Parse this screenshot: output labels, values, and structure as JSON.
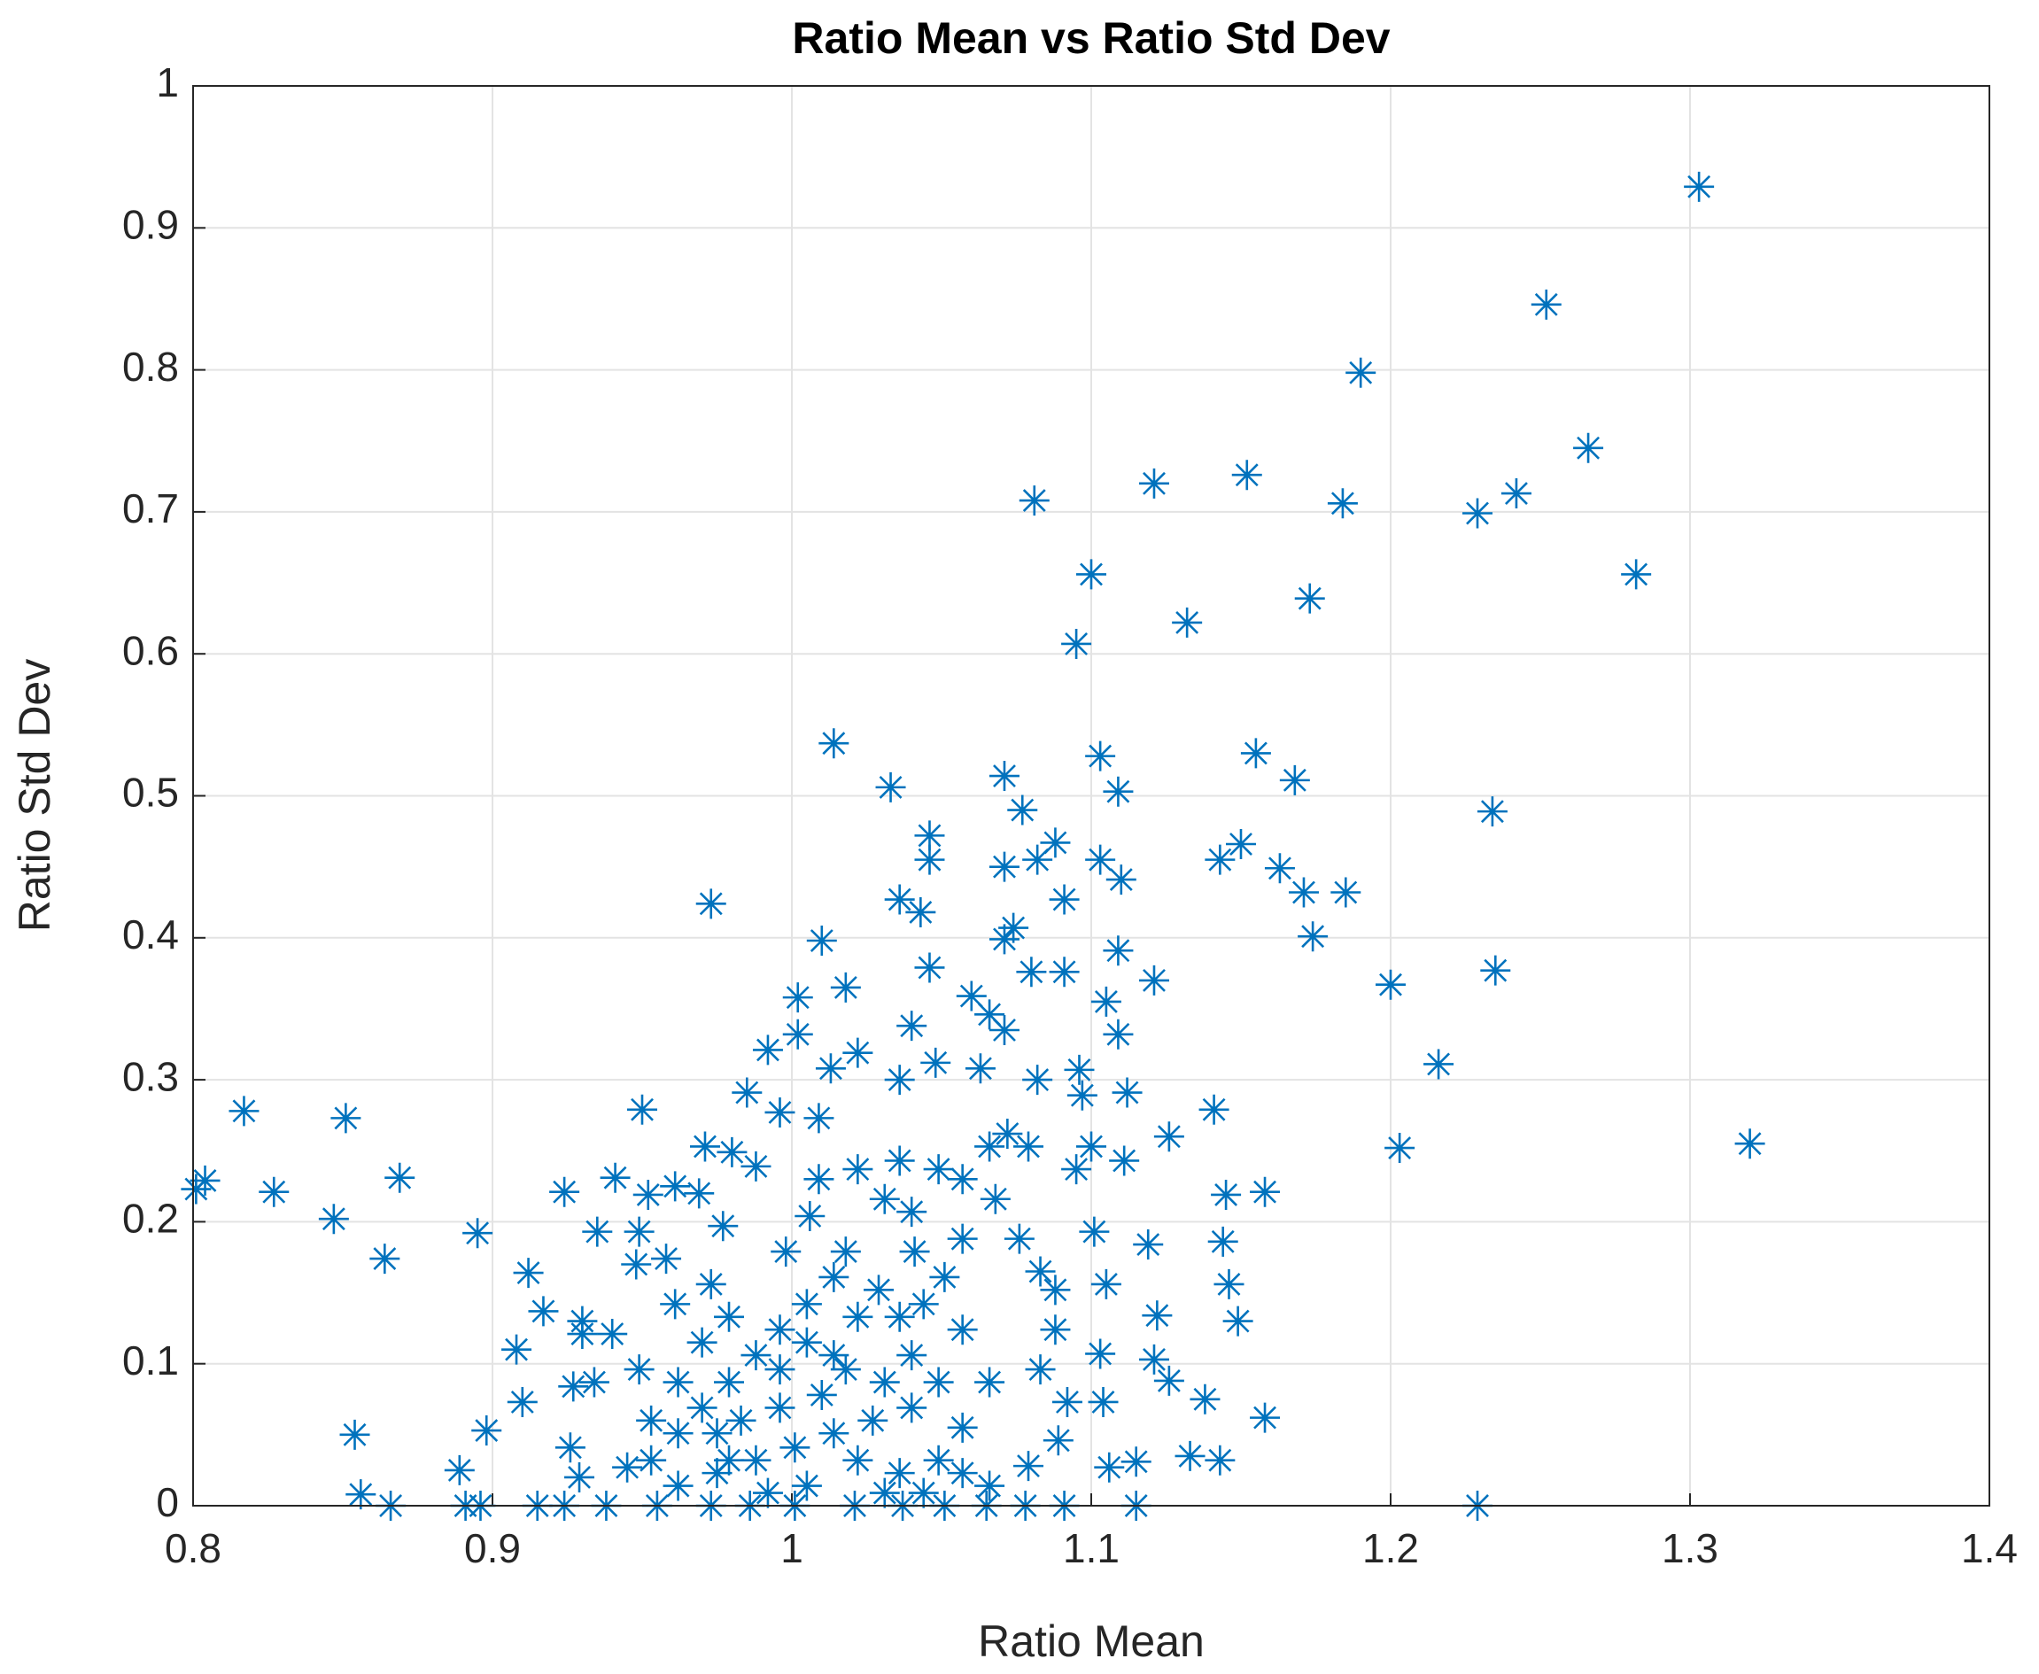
{
  "chart_data": {
    "type": "scatter",
    "title": "Ratio Mean vs Ratio Std Dev",
    "x_label": "Ratio Mean",
    "y_label": "Ratio Std Dev",
    "marker": "asterisk",
    "color": "#0072bd",
    "grid": true,
    "xlim": [
      0.8,
      1.4
    ],
    "xticks": [
      0.8,
      0.9,
      1,
      1.1,
      1.2,
      1.3,
      1.4
    ],
    "ylim": [
      0,
      1
    ],
    "yticks": [
      0,
      0.1,
      0.2,
      0.3,
      0.4,
      0.5,
      0.6,
      0.7,
      0.8,
      0.9,
      1
    ],
    "x": [
      1.303,
      1.252,
      1.19,
      1.266,
      1.242,
      1.229,
      1.282,
      1.184,
      1.152,
      1.121,
      1.081,
      1.1,
      1.173,
      1.132,
      1.095,
      1.014,
      1.155,
      1.103,
      1.168,
      1.109,
      1.071,
      1.033,
      1.234,
      1.046,
      1.077,
      1.088,
      1.15,
      1.143,
      1.163,
      1.171,
      1.185,
      1.174,
      1.2,
      1.235,
      1.216,
      1.203,
      1.32,
      0.973,
      1.01,
      0.801,
      0.804,
      0.817,
      0.851,
      0.869,
      0.827,
      0.847,
      0.864,
      0.895,
      0.912,
      0.917,
      0.908,
      0.91,
      0.898,
      0.854,
      0.856,
      0.866,
      0.889,
      0.891,
      0.896,
      0.915,
      0.924,
      1.229,
      1.158,
      1.133,
      1.143,
      1.138,
      1.145,
      1.158,
      1.144,
      1.146,
      1.149,
      1.141,
      1.126,
      1.119,
      1.122,
      1.126,
      1.121,
      1.115,
      1.106,
      1.115,
      1.104,
      1.111,
      1.112,
      1.109,
      1.105,
      1.109,
      1.11,
      1.103,
      1.121,
      1.091,
      1.091,
      1.08,
      1.074,
      1.071,
      1.082,
      1.071,
      1.066,
      1.071,
      1.06,
      1.063,
      1.082,
      1.096,
      1.095,
      1.1,
      1.097,
      1.101,
      1.105,
      1.103,
      1.092,
      1.091,
      1.078,
      1.065,
      1.051,
      1.037,
      1.021,
      1.001,
      0.986,
      0.973,
      0.955,
      0.938,
      1.046,
      1.043,
      1.036,
      1.046,
      1.04,
      1.048,
      1.036,
      1.018,
      1.002,
      1.002,
      0.992,
      0.996,
      0.985,
      1.013,
      1.022,
      1.009,
      0.95,
      0.971,
      0.98,
      0.988,
      0.961,
      0.941,
      0.924,
      0.935,
      0.949,
      0.952,
      0.969,
      0.977,
      0.958,
      0.948,
      0.961,
      0.973,
      0.94,
      0.93,
      0.93,
      0.927,
      0.934,
      0.949,
      0.926,
      0.929,
      0.945,
      1.006,
      0.998,
      1.009,
      1.022,
      1.036,
      1.049,
      1.057,
      1.066,
      1.072,
      1.079,
      1.068,
      1.076,
      1.083,
      1.088,
      1.088,
      1.083,
      1.089,
      1.079,
      1.066,
      1.057,
      1.066,
      1.057,
      1.051,
      1.057,
      1.041,
      1.04,
      1.031,
      1.029,
      1.022,
      1.014,
      1.005,
      0.996,
      0.988,
      0.979,
      0.97,
      0.962,
      0.953,
      0.962,
      0.975,
      0.988,
      1.001,
      1.014,
      1.027,
      1.04,
      1.049,
      1.04,
      1.031,
      1.018,
      1.01,
      0.996,
      0.983,
      0.975,
      0.996,
      1.005,
      1.014,
      1.022,
      1.036,
      1.049,
      1.057,
      1.005,
      0.992,
      1.031,
      1.044,
      0.979,
      0.953,
      0.962,
      0.97,
      0.979,
      1.018,
      1.036,
      1.044
    ],
    "values": [
      0.929,
      0.846,
      0.798,
      0.745,
      0.713,
      0.699,
      0.656,
      0.706,
      0.726,
      0.72,
      0.708,
      0.656,
      0.639,
      0.622,
      0.607,
      0.537,
      0.53,
      0.528,
      0.511,
      0.503,
      0.514,
      0.506,
      0.489,
      0.472,
      0.49,
      0.467,
      0.466,
      0.455,
      0.449,
      0.432,
      0.432,
      0.401,
      0.367,
      0.377,
      0.311,
      0.252,
      0.255,
      0.424,
      0.398,
      0.223,
      0.229,
      0.278,
      0.273,
      0.231,
      0.221,
      0.202,
      0.174,
      0.192,
      0.164,
      0.137,
      0.11,
      0.073,
      0.053,
      0.05,
      0.008,
      0,
      0.025,
      0,
      0,
      0,
      0,
      0,
      0.062,
      0.035,
      0.032,
      0.075,
      0.219,
      0.221,
      0.186,
      0.156,
      0.13,
      0.279,
      0.26,
      0.184,
      0.134,
      0.088,
      0.103,
      0,
      0.027,
      0.031,
      0.073,
      0.243,
      0.291,
      0.332,
      0.355,
      0.391,
      0.441,
      0.455,
      0.37,
      0.376,
      0.427,
      0.376,
      0.407,
      0.45,
      0.455,
      0.399,
      0.346,
      0.335,
      0.359,
      0.308,
      0.3,
      0.307,
      0.237,
      0.253,
      0.289,
      0.193,
      0.156,
      0.107,
      0.073,
      0,
      0,
      0,
      0,
      0,
      0,
      0,
      0,
      0,
      0,
      0,
      0.455,
      0.418,
      0.427,
      0.379,
      0.338,
      0.312,
      0.3,
      0.365,
      0.358,
      0.332,
      0.321,
      0.277,
      0.291,
      0.308,
      0.319,
      0.273,
      0.279,
      0.253,
      0.249,
      0.239,
      0.225,
      0.231,
      0.221,
      0.193,
      0.193,
      0.219,
      0.22,
      0.197,
      0.174,
      0.17,
      0.142,
      0.156,
      0.121,
      0.13,
      0.121,
      0.084,
      0.087,
      0.096,
      0.041,
      0.02,
      0.027,
      0.204,
      0.179,
      0.23,
      0.237,
      0.243,
      0.237,
      0.23,
      0.253,
      0.262,
      0.253,
      0.216,
      0.188,
      0.165,
      0.152,
      0.124,
      0.096,
      0.046,
      0.028,
      0.014,
      0.055,
      0.087,
      0.124,
      0.161,
      0.188,
      0.179,
      0.207,
      0.216,
      0.152,
      0.133,
      0.161,
      0.142,
      0.124,
      0.106,
      0.087,
      0.069,
      0.051,
      0.032,
      0.014,
      0.023,
      0.032,
      0.041,
      0.051,
      0.06,
      0.069,
      0.087,
      0.106,
      0.087,
      0.096,
      0.078,
      0.069,
      0.06,
      0.051,
      0.096,
      0.115,
      0.106,
      0.032,
      0.023,
      0.032,
      0.023,
      0.014,
      0.009,
      0.009,
      0.009,
      0.032,
      0.06,
      0.087,
      0.115,
      0.133,
      0.179,
      0.133,
      0.142
    ]
  }
}
